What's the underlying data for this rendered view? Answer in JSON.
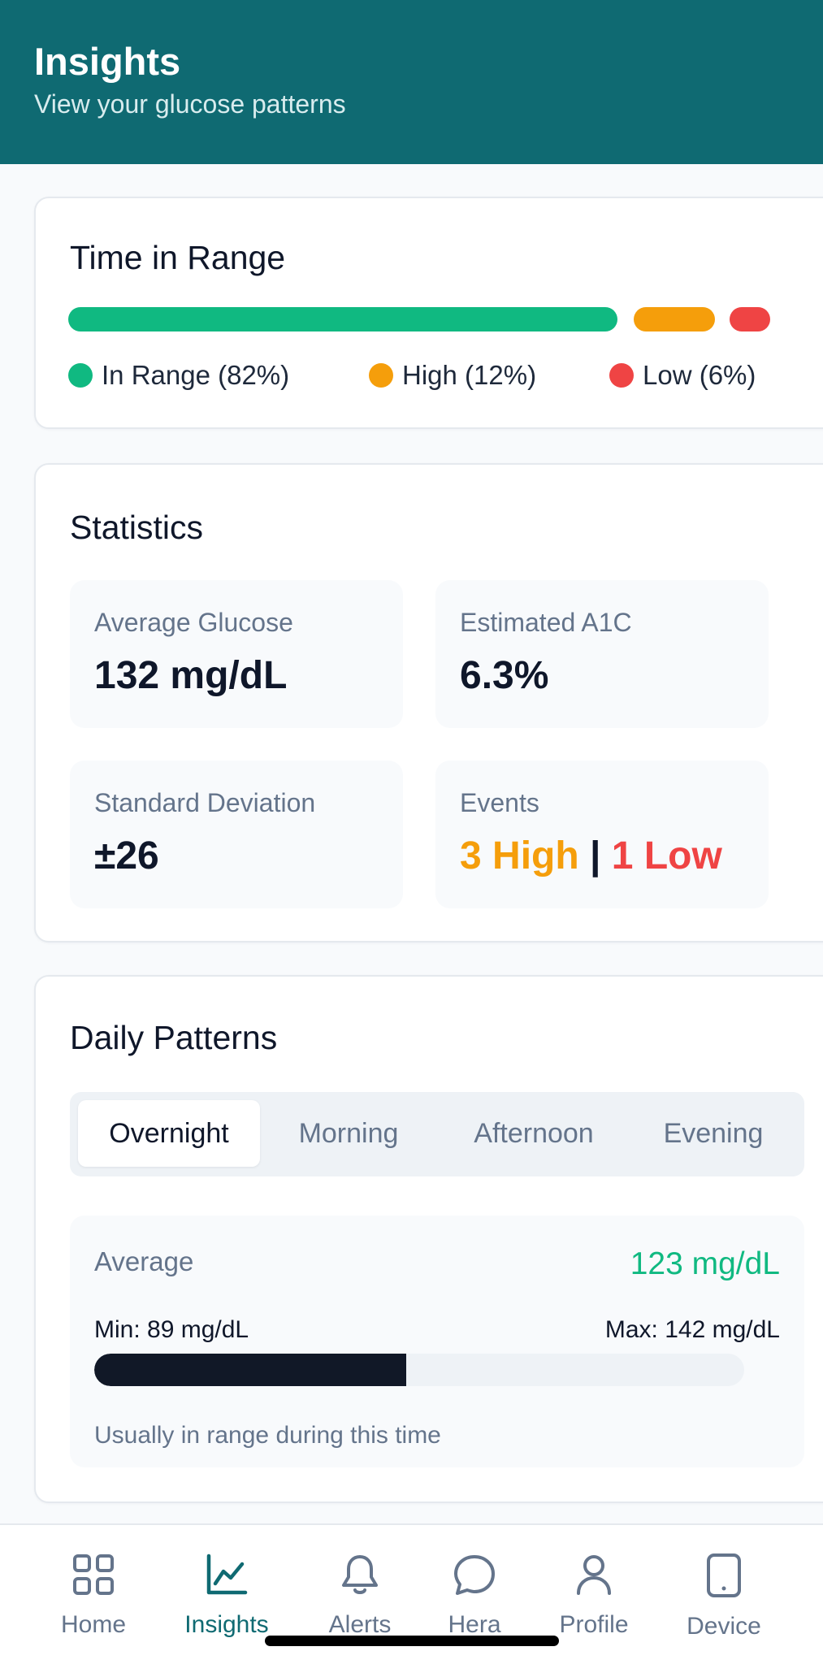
{
  "header": {
    "title": "Insights",
    "subtitle": "View your glucose patterns"
  },
  "time_in_range": {
    "title": "Time in Range",
    "segments": [
      {
        "key": "in_range",
        "label": "In Range (82%)",
        "percent": 82,
        "color": "#10b981"
      },
      {
        "key": "high",
        "label": "High (12%)",
        "percent": 12,
        "color": "#f59e0b"
      },
      {
        "key": "low",
        "label": "Low (6%)",
        "percent": 6,
        "color": "#ef4444"
      }
    ]
  },
  "statistics": {
    "title": "Statistics",
    "average_glucose": {
      "label": "Average Glucose",
      "value": "132 mg/dL"
    },
    "estimated_a1c": {
      "label": "Estimated A1C",
      "value": "6.3%"
    },
    "standard_deviation": {
      "label": "Standard Deviation",
      "value": "±26"
    },
    "events": {
      "label": "Events",
      "high": "3 High",
      "separator": "|",
      "low": "1 Low",
      "high_color": "#f59e0b",
      "low_color": "#ef4444"
    }
  },
  "daily_patterns": {
    "title": "Daily Patterns",
    "tabs": [
      "Overnight",
      "Morning",
      "Afternoon",
      "Evening"
    ],
    "selected_tab": "Overnight",
    "period": {
      "average_label": "Average",
      "average_value": "123 mg/dL",
      "min": "Min: 89 mg/dL",
      "max": "Max: 142 mg/dL",
      "fill_fraction": 0.48,
      "note": "Usually in range during this time"
    }
  },
  "nav": {
    "items": [
      "Home",
      "Insights",
      "Alerts",
      "Hera",
      "Profile",
      "Device"
    ],
    "active": "Insights",
    "icons": [
      "grid-icon",
      "chart-icon",
      "bell-icon",
      "chat-bubble-icon",
      "person-icon",
      "phone-icon"
    ]
  },
  "colors": {
    "header_bg": "#0f6a72",
    "accent": "#0f6a72",
    "in_range": "#10b981"
  }
}
